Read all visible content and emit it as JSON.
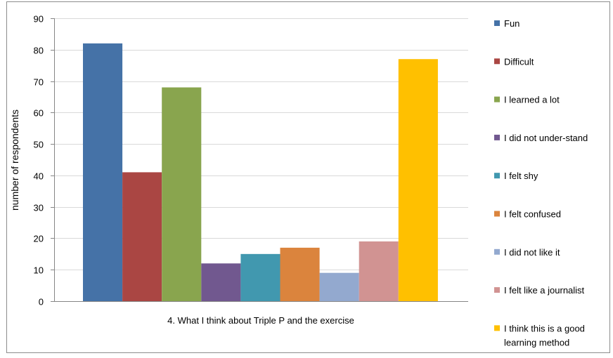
{
  "chart_data": {
    "type": "bar",
    "xlabel": "4. What I think about Triple P and the exercise",
    "ylabel": "number of respondents",
    "ylim": [
      0,
      90
    ],
    "yticks": [
      0,
      10,
      20,
      30,
      40,
      50,
      60,
      70,
      80,
      90
    ],
    "grid": true,
    "legend_position": "right",
    "series": [
      {
        "name": "Fun",
        "value": 82,
        "color": "#4572A7"
      },
      {
        "name": "Difficult",
        "value": 41,
        "color": "#AA4643"
      },
      {
        "name": "I learned a lot",
        "value": 68,
        "color": "#89A54E"
      },
      {
        "name": "I did not under-stand",
        "value": 12,
        "color": "#71588F"
      },
      {
        "name": "I felt shy",
        "value": 15,
        "color": "#4198AF"
      },
      {
        "name": "I felt confused",
        "value": 17,
        "color": "#DB843D"
      },
      {
        "name": "I did not like it",
        "value": 9,
        "color": "#93A9CF"
      },
      {
        "name": "I felt like a journalist",
        "value": 19,
        "color": "#D19392"
      },
      {
        "name": "I think this is a good learning method",
        "value": 77,
        "color": "#FFC000"
      }
    ]
  }
}
